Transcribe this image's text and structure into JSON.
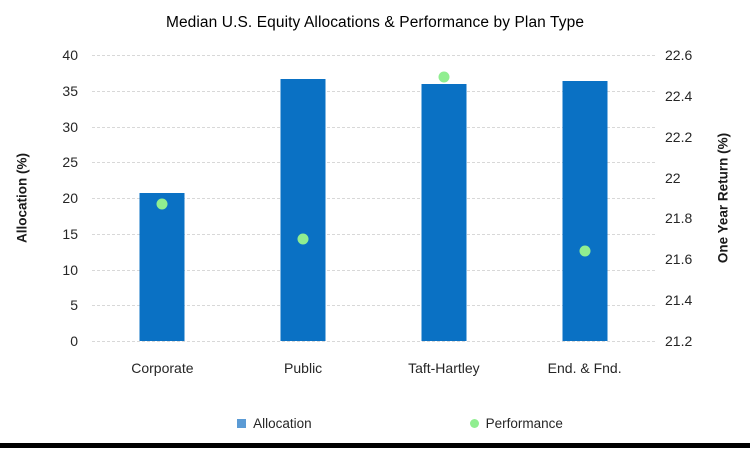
{
  "chart_data": {
    "type": "bar",
    "subtype": "bar-and-scatter-combo-dual-axis",
    "title": "Median U.S. Equity Allocations & Performance by Plan Type",
    "categories": [
      "Corporate",
      "Public",
      "Taft-Hartley",
      "End. & Fnd."
    ],
    "series": [
      {
        "name": "Allocation",
        "type": "bar",
        "axis": "left",
        "color": "#0A71C4",
        "values": [
          20.7,
          36.7,
          36.0,
          36.3
        ]
      },
      {
        "name": "Performance",
        "type": "scatter",
        "axis": "right",
        "color": "#90EE90",
        "values": [
          21.87,
          21.7,
          22.49,
          21.64
        ]
      }
    ],
    "left_axis": {
      "label": "Allocation (%)",
      "min": 0,
      "max": 40,
      "tick_labels": [
        "0",
        "5",
        "10",
        "15",
        "20",
        "25",
        "30",
        "35",
        "40"
      ]
    },
    "right_axis": {
      "label": "One Year Return (%)",
      "min": 21.2,
      "max": 22.6,
      "tick_labels": [
        "21.2",
        "21.4",
        "21.6",
        "21.8",
        "22",
        "22.2",
        "22.4",
        "22.6"
      ]
    },
    "grid": {
      "horizontal": true,
      "style": "dashed",
      "color": "#D8D8D8"
    },
    "legend": {
      "position": "bottom",
      "items": [
        {
          "label": "Allocation",
          "marker": "square",
          "color": "#5B9BD5"
        },
        {
          "label": "Performance",
          "marker": "circle",
          "color": "#90EE90"
        }
      ]
    }
  }
}
